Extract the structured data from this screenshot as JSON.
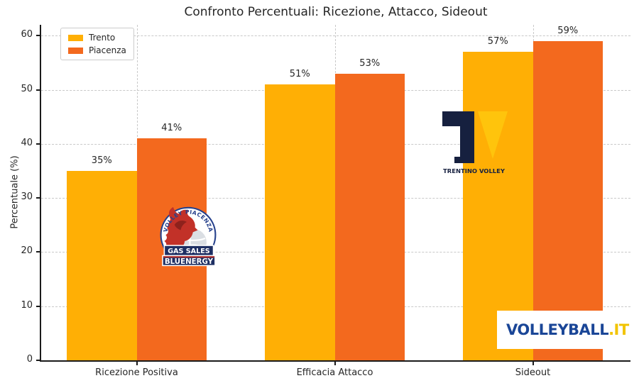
{
  "chart_data": {
    "type": "bar",
    "title": "Confronto Percentuali: Ricezione, Attacco, Sideout",
    "xlabel": "",
    "ylabel": "Percentuale (%)",
    "categories": [
      "Ricezione Positiva",
      "Efficacia Attacco",
      "Sideout"
    ],
    "series": [
      {
        "name": "Trento",
        "color": "#FFAF05",
        "values": [
          35,
          51,
          57
        ],
        "labels": [
          "35%",
          "51%",
          "57%"
        ]
      },
      {
        "name": "Piacenza",
        "color": "#F3691E",
        "values": [
          41,
          53,
          59
        ],
        "labels": [
          "41%",
          "53%",
          "59%"
        ]
      }
    ],
    "ylim": [
      0,
      62
    ],
    "yticks": [
      0,
      10,
      20,
      30,
      40,
      50,
      60
    ],
    "grid": {
      "horizontal": "dashed",
      "vertical": "dashed-at-category-centers",
      "color": "#c9c9c9"
    },
    "legend": {
      "position": "upper-left",
      "entries": [
        "Trento",
        "Piacenza"
      ]
    }
  },
  "logos": {
    "piacenza": {
      "club": "Gas Sales Bluenergy Volley Piacenza",
      "arc_text": "VOLLEY PIACENZA",
      "banner1": "GAS SALES",
      "banner2": "BLUENERGY",
      "colors": {
        "navy": "#1E2F63",
        "red": "#C23128"
      }
    },
    "trento": {
      "club": "Trentino Volley",
      "caption": "TRENTINO VOLLEY",
      "colors": {
        "navy": "#16203F",
        "gold": "#FFC40C"
      }
    },
    "volleyball_it": {
      "text": "VOLLEYBALL",
      "suffix": ".IT",
      "colors": {
        "navy": "#1A4697",
        "yellow": "#F2C400"
      }
    }
  }
}
